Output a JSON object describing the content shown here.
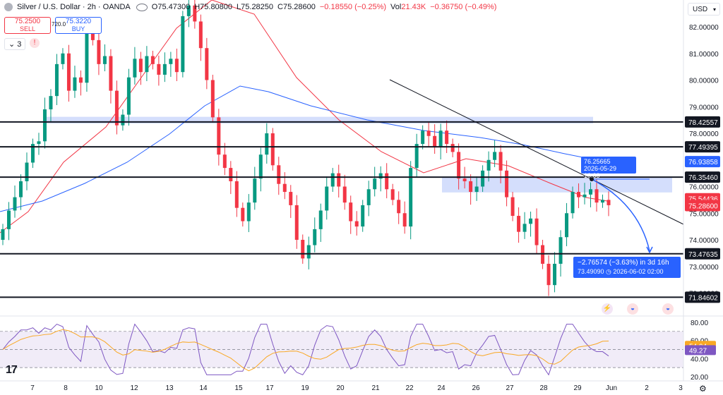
{
  "header": {
    "symbol": "Silver / U.S. Dollar · 2h · OANDA",
    "open": "O75.47300",
    "high": "H75.80800",
    "low": "L75.28250",
    "close": "C75.28600",
    "change": "−0.18550 (−0.25%)",
    "volume_label": "Vol",
    "volume": "21.43K",
    "vol_change": "−0.36750 (−0.49%)"
  },
  "trade": {
    "sell_price": "75.2500",
    "sell_label": "SELL",
    "buy_price": "75.3220",
    "buy_label": "BUY",
    "extra": "720.0"
  },
  "indicator_count": "3",
  "currency": "USD",
  "price_axis": {
    "ticks": [
      "82.00000",
      "81.00000",
      "80.00000",
      "79.00000",
      "78.00000",
      "77.00000",
      "76.00000",
      "75.00000",
      "74.00000",
      "73.00000",
      "72.00000"
    ],
    "ticks_values": [
      82,
      81,
      80,
      79,
      78,
      77,
      76,
      75,
      74,
      73,
      72
    ],
    "levels": [
      {
        "label": "78.42557",
        "value": 78.42557
      },
      {
        "label": "77.49395",
        "value": 77.49395
      },
      {
        "label": "76.35460",
        "value": 76.3546
      },
      {
        "label": "73.47635",
        "value": 73.47635
      },
      {
        "label": "71.84602",
        "value": 71.84602
      }
    ],
    "badges": [
      {
        "label": "76.93858",
        "value": 76.93858,
        "color": "#2962ff",
        "text_color": "#ffffff"
      },
      {
        "label": "75.54436",
        "value": 75.54436,
        "color": "#f23645",
        "text_color": "#ffffff"
      },
      {
        "label": "75.28600",
        "value": 75.286,
        "color": "#f23645",
        "text_color": "#ffffff"
      }
    ]
  },
  "rsi_axis": {
    "ticks": [
      "80.00",
      "60.00",
      "40.00",
      "20.00"
    ],
    "ticks_values": [
      80,
      60,
      40,
      20
    ],
    "badge1": "54.04",
    "badge2": "49.27"
  },
  "time_axis": {
    "labels": [
      "7",
      "8",
      "10",
      "12",
      "13",
      "14",
      "15",
      "17",
      "19",
      "20",
      "21",
      "22",
      "24",
      "26",
      "27",
      "28",
      "29",
      "Jun",
      "2",
      "3"
    ]
  },
  "measure": {
    "main": "−2.76574 (−3.63%) in 3d 16h",
    "sub": "73.49090 ◷ 2026-06-02  02:00"
  },
  "point_label": {
    "price": "76.25665",
    "time": "2026-05-29 10:00"
  },
  "colors": {
    "up": "#089981",
    "down": "#f23645",
    "blue_ma": "#2962ff",
    "red_ma": "#f23645",
    "zone": "#cdd8fb",
    "rsi": "#7e57c2"
  }
}
